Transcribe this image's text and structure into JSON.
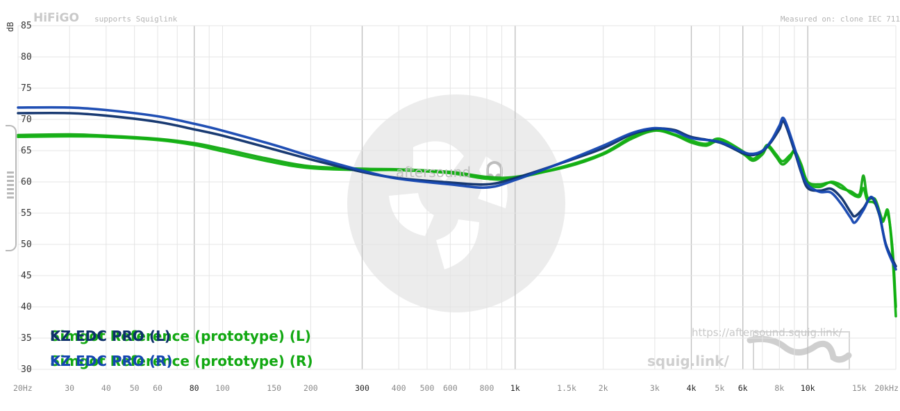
{
  "header": {
    "brand": "HiFiGO",
    "supports": "supports Squiglink",
    "measured": "Measured on: clone IEC 711"
  },
  "watermark": {
    "url": "https://aftersound.squig.link/",
    "squig": "squig.link/",
    "aftersound": "aftersound"
  },
  "colors": {
    "kz_left": "#0d2f6a",
    "kz_right": "#1446b0",
    "simgot_left": "#12a812",
    "simgot_right": "#0fb00f",
    "grid": "#e4e4e4",
    "grid_major": "#bdbdbd"
  },
  "chart_data": {
    "type": "line",
    "xscale": "log",
    "xlim": [
      20,
      20000
    ],
    "ylim": [
      30,
      85
    ],
    "ylabel": "dB",
    "y_ticks": [
      30,
      35,
      40,
      45,
      50,
      55,
      60,
      65,
      70,
      75,
      80,
      85
    ],
    "x_tick_labels": [
      {
        "v": 20,
        "t": "20Hz",
        "major": false
      },
      {
        "v": 30,
        "t": "30",
        "major": false
      },
      {
        "v": 40,
        "t": "40",
        "major": false
      },
      {
        "v": 50,
        "t": "50",
        "major": false
      },
      {
        "v": 60,
        "t": "60",
        "major": false
      },
      {
        "v": 80,
        "t": "80",
        "major": true
      },
      {
        "v": 100,
        "t": "100",
        "major": false
      },
      {
        "v": 150,
        "t": "150",
        "major": false
      },
      {
        "v": 200,
        "t": "200",
        "major": false
      },
      {
        "v": 300,
        "t": "300",
        "major": true
      },
      {
        "v": 400,
        "t": "400",
        "major": false
      },
      {
        "v": 500,
        "t": "500",
        "major": false
      },
      {
        "v": 600,
        "t": "600",
        "major": false
      },
      {
        "v": 800,
        "t": "800",
        "major": false
      },
      {
        "v": 1000,
        "t": "1k",
        "major": true
      },
      {
        "v": 1500,
        "t": "1.5k",
        "major": false
      },
      {
        "v": 2000,
        "t": "2k",
        "major": false
      },
      {
        "v": 3000,
        "t": "3k",
        "major": false
      },
      {
        "v": 4000,
        "t": "4k",
        "major": true
      },
      {
        "v": 5000,
        "t": "5k",
        "major": false
      },
      {
        "v": 6000,
        "t": "6k",
        "major": true
      },
      {
        "v": 8000,
        "t": "8k",
        "major": false
      },
      {
        "v": 10000,
        "t": "10k",
        "major": true
      },
      {
        "v": 15000,
        "t": "15k",
        "major": false
      },
      {
        "v": 20000,
        "t": "20kHz",
        "major": false
      }
    ],
    "legend": [
      {
        "key": "a1",
        "text": "Simgot Reference (prototype) (L)",
        "color": "#12a812"
      },
      {
        "key": "a2",
        "text": "KZ EDC PRO (L)",
        "color": "#0d2f6a"
      },
      {
        "key": "b1",
        "text": "Simgot Reference (prototype) (R)",
        "color": "#12a812"
      },
      {
        "key": "b2",
        "text": "KZ EDC PRO (R)",
        "color": "#1446b0"
      }
    ],
    "series": [
      {
        "name": "KZ EDC PRO (L)",
        "color": "#0d2f6a",
        "points": [
          [
            20,
            71.0
          ],
          [
            30,
            71.0
          ],
          [
            40,
            70.6
          ],
          [
            60,
            69.6
          ],
          [
            80,
            68.4
          ],
          [
            100,
            67.4
          ],
          [
            150,
            65.2
          ],
          [
            200,
            63.6
          ],
          [
            300,
            61.6
          ],
          [
            400,
            60.6
          ],
          [
            600,
            59.9
          ],
          [
            800,
            59.6
          ],
          [
            1000,
            60.6
          ],
          [
            1500,
            63.3
          ],
          [
            2000,
            65.4
          ],
          [
            2500,
            67.6
          ],
          [
            3000,
            68.5
          ],
          [
            3500,
            68.3
          ],
          [
            4000,
            67.2
          ],
          [
            5000,
            66.3
          ],
          [
            6000,
            64.6
          ],
          [
            6500,
            64.3
          ],
          [
            7000,
            64.9
          ],
          [
            7500,
            66.4
          ],
          [
            8000,
            68.4
          ],
          [
            8300,
            69.6
          ],
          [
            9000,
            65.0
          ],
          [
            9500,
            61.5
          ],
          [
            10000,
            59.0
          ],
          [
            11000,
            58.6
          ],
          [
            12000,
            58.9
          ],
          [
            13000,
            57.5
          ],
          [
            14000,
            55.2
          ],
          [
            14500,
            54.5
          ],
          [
            15500,
            55.8
          ],
          [
            16500,
            57.5
          ],
          [
            17500,
            55.0
          ],
          [
            18500,
            50.0
          ],
          [
            20000,
            46.5
          ]
        ]
      },
      {
        "name": "KZ EDC PRO (R)",
        "color": "#1446b0",
        "points": [
          [
            20,
            71.9
          ],
          [
            30,
            71.9
          ],
          [
            40,
            71.5
          ],
          [
            60,
            70.5
          ],
          [
            80,
            69.3
          ],
          [
            100,
            68.2
          ],
          [
            150,
            65.9
          ],
          [
            200,
            64.1
          ],
          [
            300,
            61.8
          ],
          [
            400,
            60.5
          ],
          [
            600,
            59.6
          ],
          [
            800,
            59.1
          ],
          [
            1000,
            60.3
          ],
          [
            1500,
            63.4
          ],
          [
            2000,
            65.8
          ],
          [
            2500,
            67.8
          ],
          [
            3000,
            68.6
          ],
          [
            3500,
            68.1
          ],
          [
            4000,
            67.0
          ],
          [
            5000,
            66.4
          ],
          [
            6000,
            64.8
          ],
          [
            6500,
            64.5
          ],
          [
            7000,
            65.0
          ],
          [
            7500,
            66.6
          ],
          [
            8000,
            69.0
          ],
          [
            8300,
            70.1
          ],
          [
            9000,
            65.5
          ],
          [
            9500,
            61.8
          ],
          [
            10000,
            59.5
          ],
          [
            11000,
            58.4
          ],
          [
            12000,
            58.3
          ],
          [
            13000,
            56.5
          ],
          [
            14000,
            54.3
          ],
          [
            14500,
            53.5
          ],
          [
            15500,
            55.5
          ],
          [
            16500,
            57.6
          ],
          [
            17500,
            55.2
          ],
          [
            18500,
            49.8
          ],
          [
            20000,
            46.0
          ]
        ]
      },
      {
        "name": "Simgot Reference (prototype) (L)",
        "color": "#12a812",
        "points": [
          [
            20,
            67.5
          ],
          [
            30,
            67.6
          ],
          [
            40,
            67.4
          ],
          [
            60,
            66.9
          ],
          [
            80,
            66.2
          ],
          [
            100,
            65.3
          ],
          [
            150,
            63.5
          ],
          [
            200,
            62.5
          ],
          [
            300,
            62.1
          ],
          [
            400,
            62.0
          ],
          [
            600,
            61.6
          ],
          [
            800,
            60.8
          ],
          [
            1000,
            60.8
          ],
          [
            1500,
            62.4
          ],
          [
            2000,
            64.4
          ],
          [
            2500,
            66.9
          ],
          [
            3000,
            68.2
          ],
          [
            3500,
            67.5
          ],
          [
            4000,
            66.3
          ],
          [
            4500,
            65.8
          ],
          [
            5000,
            66.5
          ],
          [
            6000,
            64.5
          ],
          [
            6500,
            63.4
          ],
          [
            7000,
            64.4
          ],
          [
            7300,
            65.6
          ],
          [
            7800,
            64.0
          ],
          [
            8200,
            62.8
          ],
          [
            8700,
            63.8
          ],
          [
            9000,
            65.0
          ],
          [
            9500,
            62.8
          ],
          [
            10000,
            60.0
          ],
          [
            11000,
            59.6
          ],
          [
            12000,
            59.9
          ],
          [
            13000,
            59.0
          ],
          [
            14000,
            58.5
          ],
          [
            15000,
            58.0
          ],
          [
            15500,
            61.0
          ],
          [
            16000,
            57.5
          ],
          [
            17000,
            57.2
          ],
          [
            18000,
            54.0
          ],
          [
            18800,
            54.8
          ],
          [
            19500,
            49.0
          ],
          [
            20000,
            40.0
          ]
        ]
      },
      {
        "name": "Simgot Reference (prototype) (R)",
        "color": "#0fb00f",
        "points": [
          [
            20,
            67.2
          ],
          [
            30,
            67.3
          ],
          [
            40,
            67.2
          ],
          [
            60,
            66.7
          ],
          [
            80,
            65.9
          ],
          [
            100,
            64.9
          ],
          [
            150,
            63.1
          ],
          [
            200,
            62.2
          ],
          [
            300,
            61.9
          ],
          [
            400,
            61.9
          ],
          [
            600,
            61.4
          ],
          [
            800,
            60.5
          ],
          [
            1000,
            60.6
          ],
          [
            1500,
            62.6
          ],
          [
            2000,
            64.6
          ],
          [
            2500,
            67.2
          ],
          [
            3000,
            68.4
          ],
          [
            3500,
            67.6
          ],
          [
            4000,
            66.6
          ],
          [
            4500,
            66.1
          ],
          [
            5000,
            66.9
          ],
          [
            6000,
            64.9
          ],
          [
            6500,
            63.7
          ],
          [
            7000,
            64.9
          ],
          [
            7300,
            65.9
          ],
          [
            7800,
            64.4
          ],
          [
            8200,
            63.3
          ],
          [
            8700,
            64.3
          ],
          [
            9000,
            64.7
          ],
          [
            9500,
            62.5
          ],
          [
            10000,
            59.7
          ],
          [
            11000,
            59.2
          ],
          [
            12000,
            60.0
          ],
          [
            13000,
            59.5
          ],
          [
            14000,
            58.2
          ],
          [
            15000,
            57.6
          ],
          [
            15500,
            59.0
          ],
          [
            16000,
            57.0
          ],
          [
            17000,
            56.5
          ],
          [
            18000,
            53.6
          ],
          [
            18800,
            55.4
          ],
          [
            19500,
            48.0
          ],
          [
            20000,
            38.5
          ]
        ]
      }
    ]
  }
}
